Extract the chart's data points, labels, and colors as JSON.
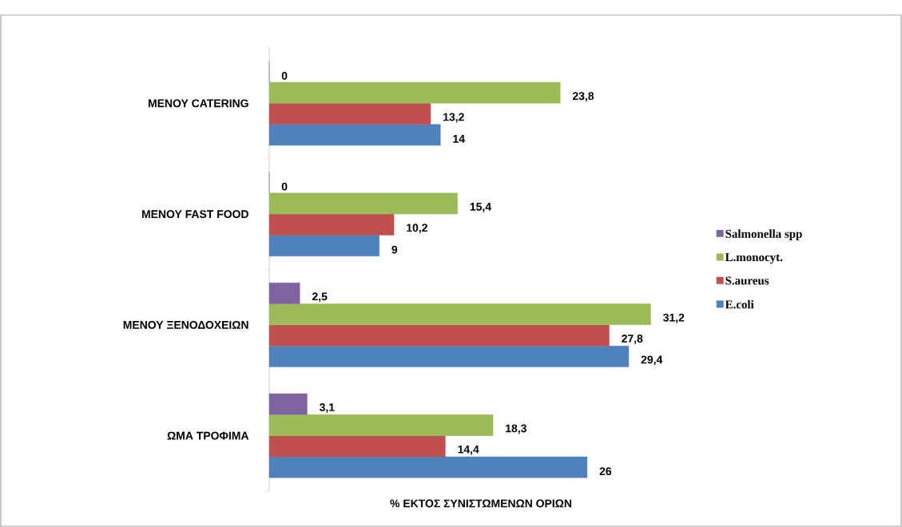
{
  "chart_data": {
    "type": "bar",
    "orientation": "horizontal",
    "xlabel": "% ΕΚΤΟΣ ΣΥΝΙΣΤΩΜΕΝΩΝ ΟΡΙΩΝ",
    "categories": [
      "ΜΕΝΟΥ CATERING",
      "ΜΕΝΟΥ FAST FOOD",
      "ΜΕΝΟΥ ΞΕΝΟΔΟΧΕΙΩΝ",
      "ΩΜΑ ΤΡΟΦΙΜΑ"
    ],
    "series": [
      {
        "name": "Salmonella spp",
        "color": "#8064a2",
        "values": [
          0,
          0,
          2.5,
          3.1
        ],
        "value_labels": [
          "0",
          "0",
          "2,5",
          "3,1"
        ]
      },
      {
        "name": "L.monocyt.",
        "color": "#9bbb59",
        "values": [
          23.8,
          15.4,
          31.2,
          18.3
        ],
        "value_labels": [
          "23,8",
          "15,4",
          "31,2",
          "18,3"
        ]
      },
      {
        "name": "S.aureus",
        "color": "#c0504d",
        "values": [
          13.2,
          10.2,
          27.8,
          14.4
        ],
        "value_labels": [
          "13,2",
          "10,2",
          "27,8",
          "14,4"
        ]
      },
      {
        "name": "E.coli",
        "color": "#4f81bd",
        "values": [
          14,
          9,
          29.4,
          26
        ],
        "value_labels": [
          "14",
          "9",
          "29,4",
          "26"
        ]
      }
    ],
    "legend": "right"
  }
}
